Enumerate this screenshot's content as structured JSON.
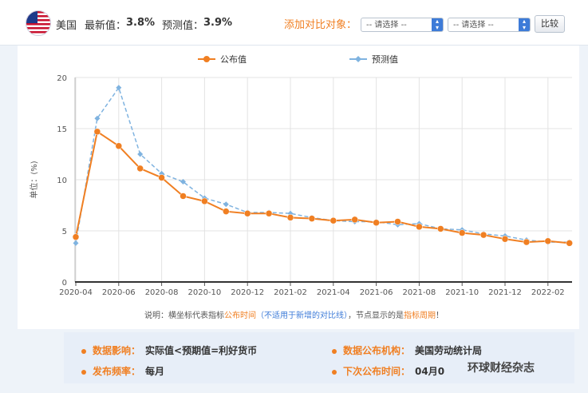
{
  "header": {
    "country": "美国",
    "latest_label": "最新值：",
    "latest_value": "3.8%",
    "forecast_label": "预测值：",
    "forecast_value": "3.9%",
    "compare_label": "添加对比对象：",
    "select1": "-- 请选择 --",
    "select2": "-- 请选择 --",
    "compare_button": "比较"
  },
  "note": {
    "prefix": "说明：横坐标代表指标",
    "highlight1": "公布时间",
    "paren": "（不适用于新增的对比线）",
    "middle": "，节点显示的是",
    "highlight2": "指标周期",
    "suffix": "！"
  },
  "info": {
    "impact_label": "数据影响：",
    "impact_value": "实际值<预期值=利好货币",
    "agency_label": "数据公布机构：",
    "agency_value": "美国劳动统计局",
    "freq_label": "发布频率：",
    "freq_value": "每月",
    "next_label": "下次公布时间：",
    "next_value": "04月0"
  },
  "watermark": "环球财经杂志",
  "chart_data": {
    "type": "line",
    "ylabel": "单位：(%)",
    "ylim": [
      0,
      20
    ],
    "yticks": [
      0,
      5,
      10,
      15,
      20
    ],
    "xtick_labels": [
      "2020-04",
      "2020-06",
      "2020-08",
      "2020-10",
      "2020-12",
      "2021-02",
      "2021-04",
      "2021-06",
      "2021-08",
      "2021-10",
      "2021-12",
      "2022-02"
    ],
    "x": [
      "2020-04",
      "2020-05",
      "2020-06",
      "2020-07",
      "2020-08",
      "2020-09",
      "2020-10",
      "2020-11",
      "2020-12",
      "2021-01",
      "2021-02",
      "2021-03",
      "2021-04",
      "2021-05",
      "2021-06",
      "2021-07",
      "2021-08",
      "2021-09",
      "2021-10",
      "2021-11",
      "2021-12",
      "2022-01",
      "2022-02",
      "2022-03"
    ],
    "legend_position": "top-center",
    "grid": true,
    "series": [
      {
        "name": "公布值",
        "color": "#f07f22",
        "style": "solid",
        "values": [
          4.4,
          14.7,
          13.3,
          11.1,
          10.2,
          8.4,
          7.9,
          6.9,
          6.7,
          6.7,
          6.3,
          6.2,
          6.0,
          6.1,
          5.8,
          5.9,
          5.4,
          5.2,
          4.8,
          4.6,
          4.2,
          3.9,
          4.0,
          3.8
        ]
      },
      {
        "name": "预测值",
        "color": "#7fb3e0",
        "style": "dashed",
        "values": [
          3.8,
          16.0,
          19.0,
          12.5,
          10.6,
          9.8,
          8.2,
          7.6,
          6.8,
          6.8,
          6.7,
          6.3,
          6.0,
          5.9,
          5.9,
          5.6,
          5.7,
          5.2,
          5.1,
          4.7,
          4.5,
          4.1,
          3.9,
          3.9
        ]
      }
    ]
  }
}
